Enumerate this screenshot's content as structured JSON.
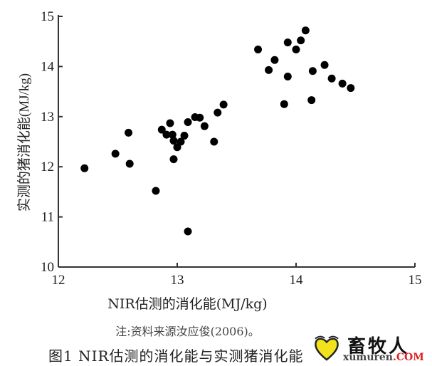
{
  "chart_data": {
    "type": "scatter",
    "xlabel": "NIR估测的消化能(MJ/kg)",
    "ylabel": "实测的猪消化能(MJ/kg)",
    "xlim": [
      12,
      15
    ],
    "ylim": [
      10,
      15
    ],
    "xticks": [
      "12",
      "13",
      "14",
      "15"
    ],
    "yticks": [
      "10",
      "11",
      "12",
      "13",
      "14",
      "15"
    ],
    "grid": false,
    "marker_color": "#000000",
    "points": [
      [
        12.22,
        11.97
      ],
      [
        12.48,
        12.26
      ],
      [
        12.59,
        12.68
      ],
      [
        12.6,
        12.06
      ],
      [
        12.82,
        11.52
      ],
      [
        12.87,
        12.74
      ],
      [
        12.94,
        12.87
      ],
      [
        12.91,
        12.64
      ],
      [
        12.96,
        12.64
      ],
      [
        12.97,
        12.52
      ],
      [
        13.03,
        12.5
      ],
      [
        13.0,
        12.39
      ],
      [
        13.06,
        12.62
      ],
      [
        12.97,
        12.15
      ],
      [
        13.09,
        12.89
      ],
      [
        13.15,
        12.99
      ],
      [
        13.19,
        12.98
      ],
      [
        13.23,
        12.81
      ],
      [
        13.31,
        12.5
      ],
      [
        13.34,
        13.08
      ],
      [
        13.39,
        13.24
      ],
      [
        13.09,
        10.71
      ],
      [
        13.68,
        14.34
      ],
      [
        13.82,
        14.13
      ],
      [
        13.77,
        13.93
      ],
      [
        13.93,
        14.48
      ],
      [
        13.93,
        13.8
      ],
      [
        13.9,
        13.25
      ],
      [
        14.0,
        14.34
      ],
      [
        14.04,
        14.52
      ],
      [
        14.08,
        14.72
      ],
      [
        14.14,
        13.91
      ],
      [
        14.13,
        13.33
      ],
      [
        14.24,
        14.03
      ],
      [
        14.3,
        13.76
      ],
      [
        14.39,
        13.66
      ],
      [
        14.46,
        13.57
      ]
    ],
    "note": "注:资料来源汝应俊(2006)。",
    "caption": "图1   NIR估测的消化能与实测猪消化能"
  },
  "watermark": {
    "cn": "畜牧人",
    "en": "xumuren",
    "suffix": ".COM",
    "heart_color": "#f2e21c"
  }
}
